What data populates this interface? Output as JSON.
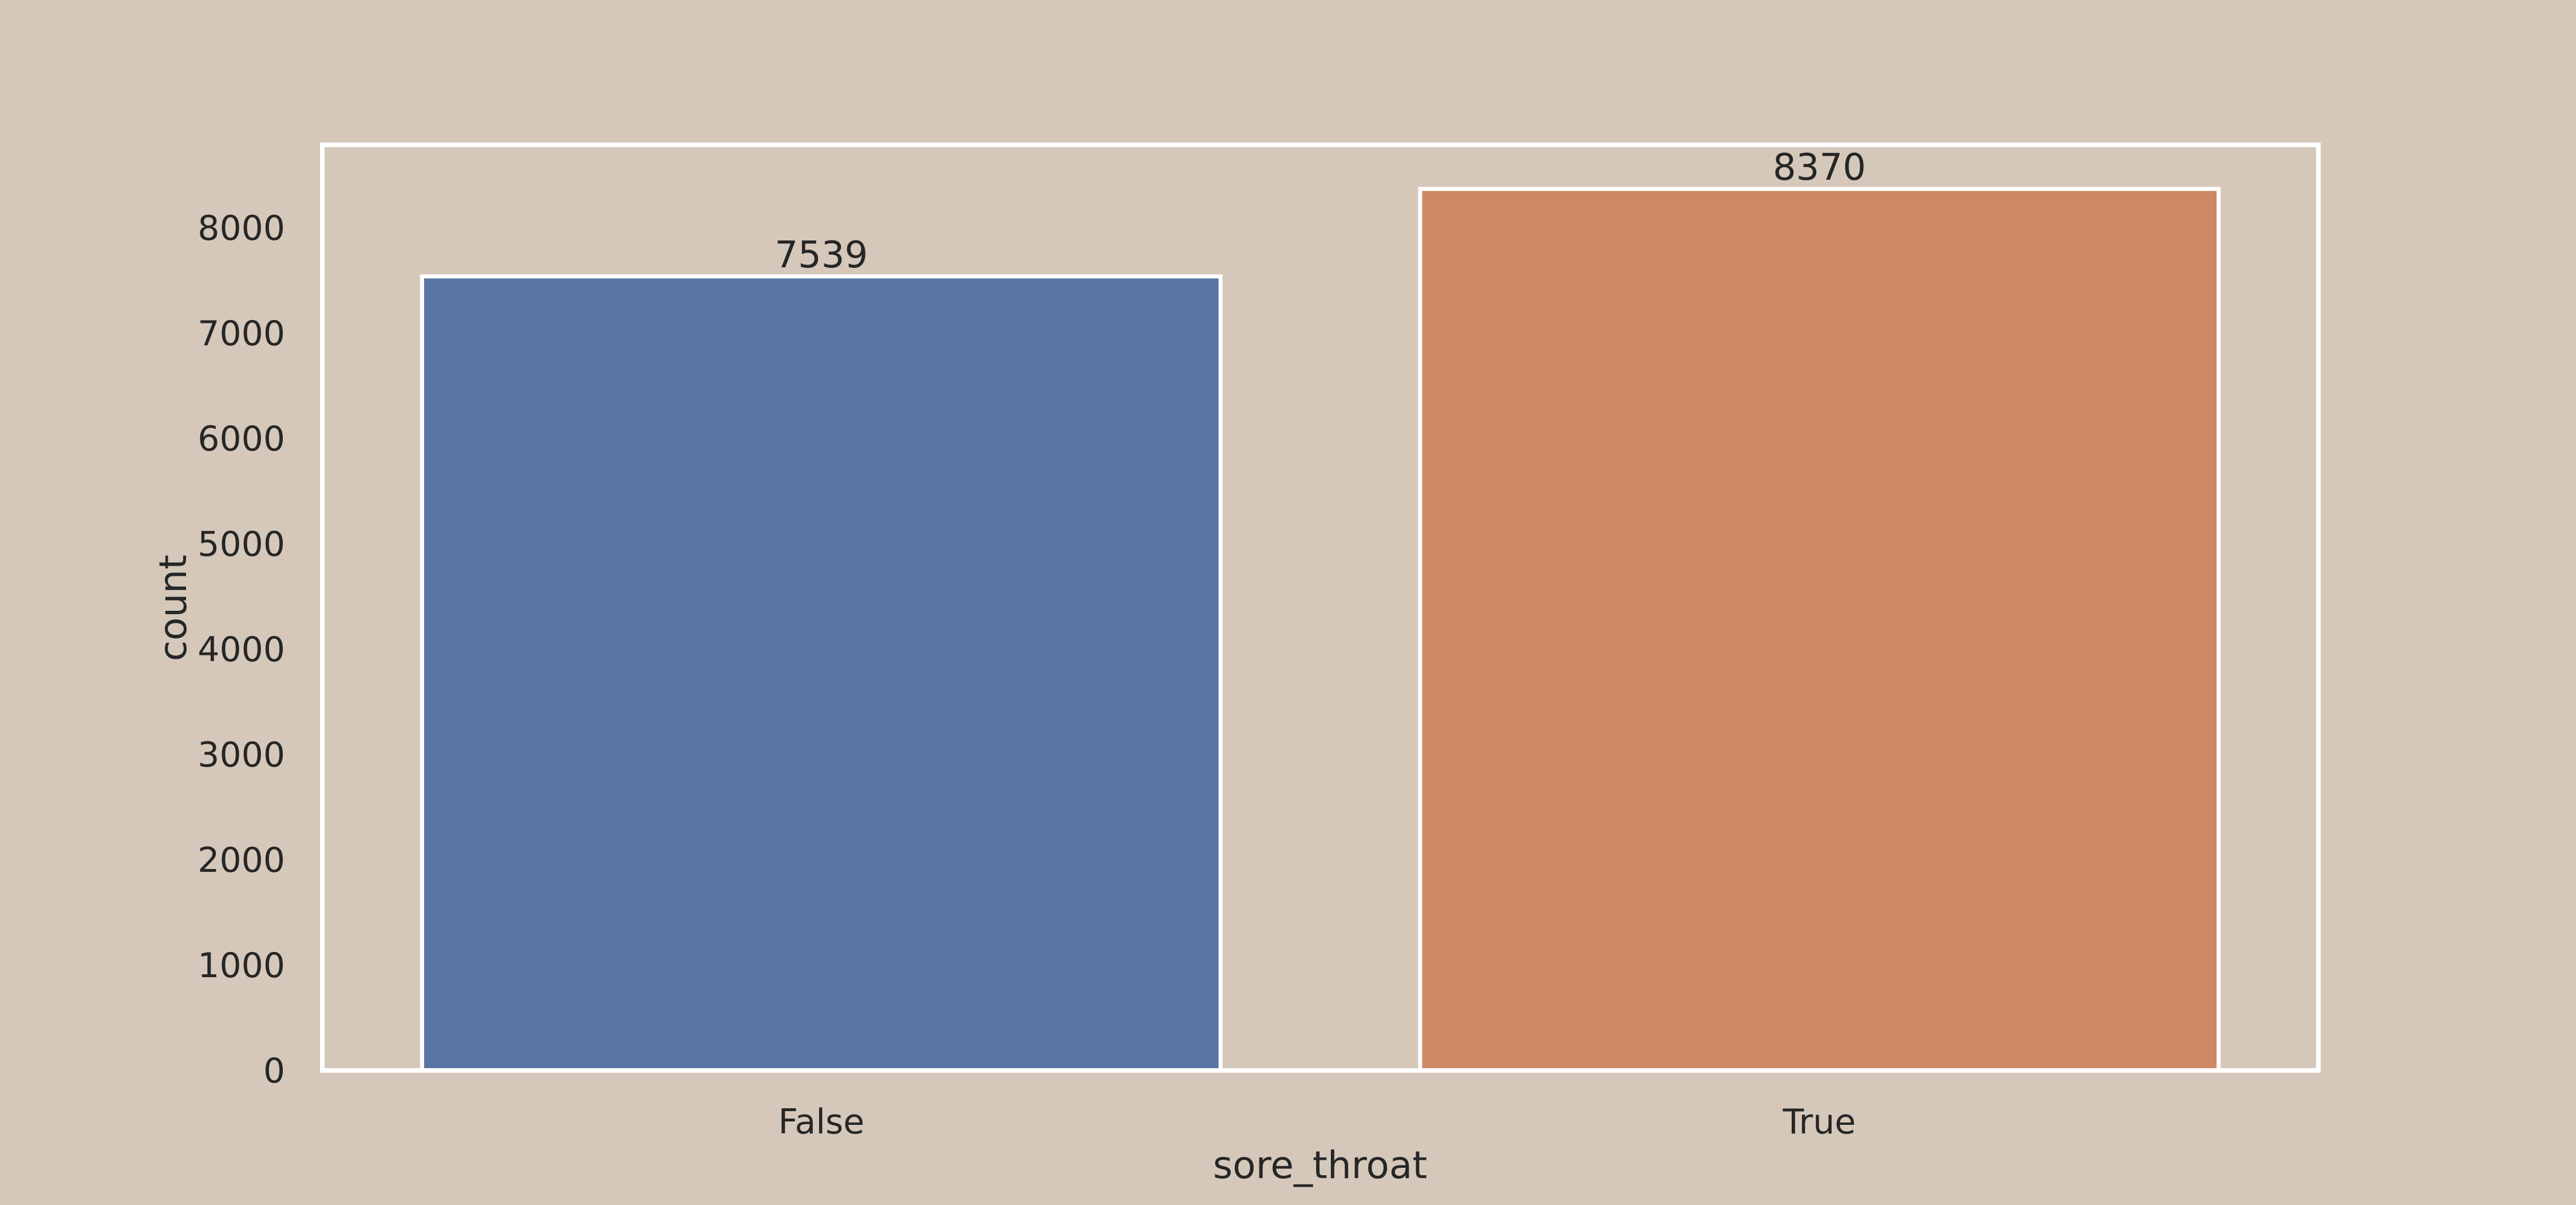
{
  "chart_data": {
    "type": "bar",
    "title": "",
    "xlabel": "sore_throat",
    "ylabel": "count",
    "categories": [
      "False",
      "True"
    ],
    "values": [
      7539,
      8370
    ],
    "data_labels": [
      "7539",
      "8370"
    ],
    "yticks": [
      0,
      1000,
      2000,
      3000,
      4000,
      5000,
      6000,
      7000,
      8000
    ],
    "ytick_labels": [
      "0",
      "1000",
      "2000",
      "3000",
      "4000",
      "5000",
      "6000",
      "7000",
      "8000"
    ],
    "ylim": [
      0,
      8788.5
    ],
    "grid": false,
    "legend": "none",
    "colors": {
      "background": "#d5c8ba",
      "bars": [
        "#5875a4",
        "#cc8963"
      ],
      "edge": "#ffffff",
      "text": "#262626"
    }
  }
}
